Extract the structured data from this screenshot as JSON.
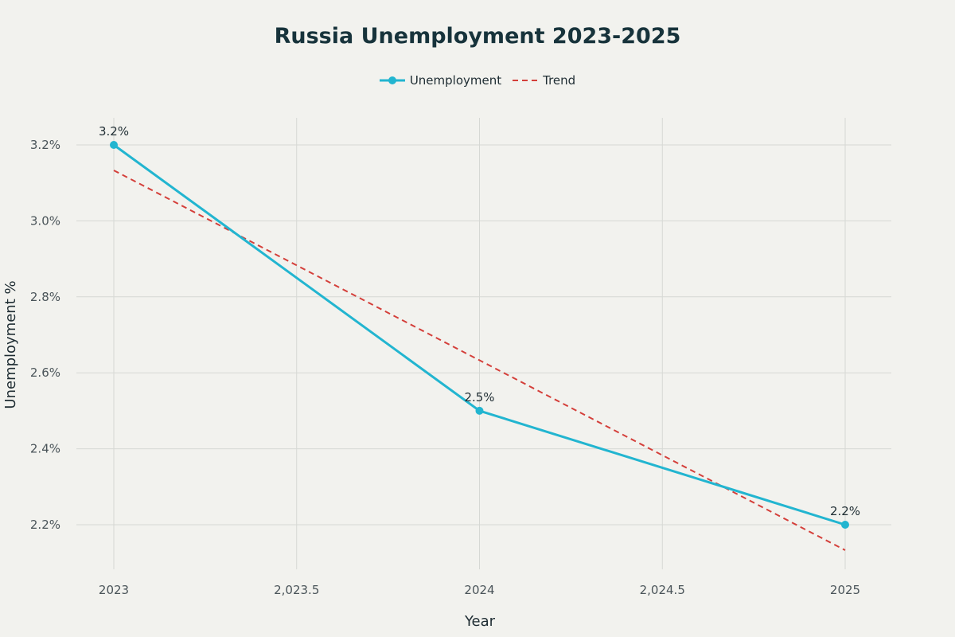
{
  "chart_data": {
    "type": "line",
    "title": "Russia Unemployment 2023-2025",
    "xlabel": "Year",
    "ylabel": "Unemployment %",
    "xlim": [
      2022.97,
      2025.13
    ],
    "ylim": [
      2.1,
      3.27
    ],
    "x_ticks": [
      2023,
      2023.5,
      2024,
      2024.5,
      2025
    ],
    "x_tick_labels": [
      "2023",
      "2,023.5",
      "2024",
      "2,024.5",
      "2025"
    ],
    "y_ticks": [
      2.2,
      2.4,
      2.6,
      2.8,
      3.0,
      3.2
    ],
    "y_tick_labels": [
      "2.2%",
      "2.4%",
      "2.6%",
      "2.8%",
      "3.0%",
      "3.2%"
    ],
    "grid": true,
    "legend_position": "top-center",
    "series": [
      {
        "name": "Unemployment",
        "style": "line-markers",
        "color": "#22b5d0",
        "x": [
          2023,
          2024,
          2025
        ],
        "y": [
          3.2,
          2.5,
          2.2
        ],
        "data_labels": [
          "3.2%",
          "2.5%",
          "2.2%"
        ]
      },
      {
        "name": "Trend",
        "style": "dashed",
        "color": "#d43f3a",
        "x": [
          2023,
          2025
        ],
        "y": [
          3.133,
          2.133
        ]
      }
    ]
  }
}
